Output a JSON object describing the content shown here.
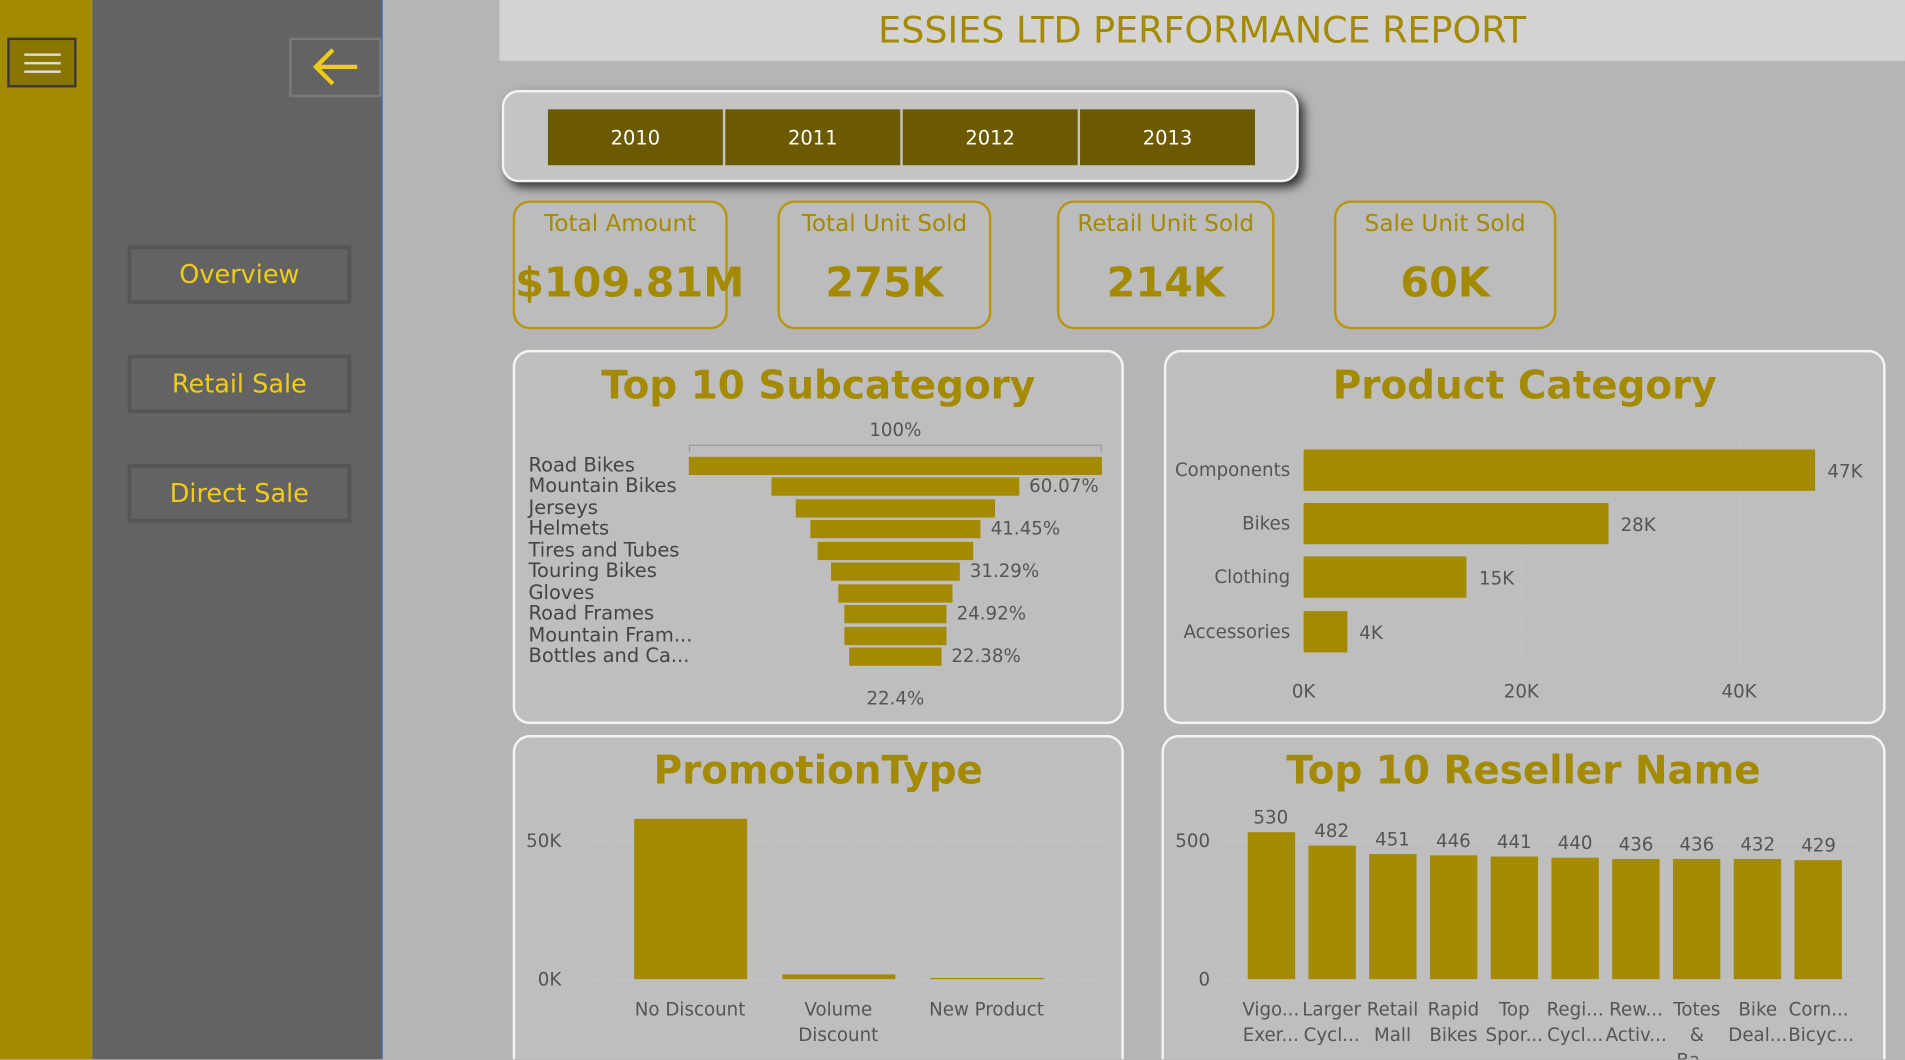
{
  "sidebar": {
    "nav": [
      "Overview",
      "Retail Sale",
      "Direct Sale"
    ]
  },
  "header": {
    "title": "ESSIES LTD PERFORMANCE REPORT"
  },
  "slicer": {
    "years": [
      "2010",
      "2011",
      "2012",
      "2013"
    ]
  },
  "cards": [
    {
      "label": "Total Amount",
      "value": "$109.81M"
    },
    {
      "label": "Total Unit Sold",
      "value": "275K"
    },
    {
      "label": "Retail Unit Sold",
      "value": "214K"
    },
    {
      "label": "Sale Unit Sold",
      "value": "60K"
    }
  ],
  "chart_data": [
    {
      "type": "funnel",
      "title": "Top 10 Subcategory",
      "categories": [
        "Road Bikes",
        "Mountain Bikes",
        "Jerseys",
        "Helmets",
        "Tires and Tubes",
        "Touring Bikes",
        "Gloves",
        "Road Frames",
        "Mountain Fram...",
        "Bottles and Ca..."
      ],
      "values": [
        100,
        60.07,
        48.2,
        41.45,
        37.6,
        31.29,
        27.6,
        24.92,
        24.7,
        22.38
      ],
      "value_labels": [
        "100%",
        "60.07%",
        null,
        "41.45%",
        null,
        "31.29%",
        null,
        "24.92%",
        null,
        "22.38%"
      ],
      "bottom_label": "22.4%",
      "color": "#a38a00"
    },
    {
      "type": "hbar",
      "title": "Product Category",
      "categories": [
        "Components",
        "Bikes",
        "Clothing",
        "Accessories"
      ],
      "values": [
        47000,
        28000,
        15000,
        4000
      ],
      "value_labels": [
        "47K",
        "28K",
        "15K",
        "4K"
      ],
      "xlim": [
        0,
        51000
      ],
      "xticks": [
        {
          "value": 0,
          "label": "0K"
        },
        {
          "value": 20000,
          "label": "20K"
        },
        {
          "value": 40000,
          "label": "40K"
        }
      ],
      "color": "#a38a00"
    },
    {
      "type": "bar",
      "title": "PromotionType",
      "categories": [
        "No Discount",
        "Volume Discount",
        "New Product"
      ],
      "values": [
        58000,
        1800,
        400
      ],
      "ylim": [
        0,
        64000
      ],
      "yticks": [
        {
          "value": 0,
          "label": "0K"
        },
        {
          "value": 50000,
          "label": "50K"
        }
      ],
      "color": "#a38a00",
      "data_labels": false
    },
    {
      "type": "bar",
      "title": "Top 10 Reseller Name",
      "categories": [
        "Vigo... Exer...",
        "Larger Cycl...",
        "Retail Mall",
        "Rapid Bikes",
        "Top Spor...",
        "Regi... Cycl...",
        "Rew... Activ...",
        "Totes & Ba...",
        "Bike Deal...",
        "Corn... Bicyc..."
      ],
      "values": [
        530,
        482,
        451,
        446,
        441,
        440,
        436,
        436,
        432,
        429
      ],
      "ylim": [
        0,
        640
      ],
      "yticks": [
        0,
        500
      ],
      "color": "#a38a00",
      "data_labels": true
    }
  ]
}
